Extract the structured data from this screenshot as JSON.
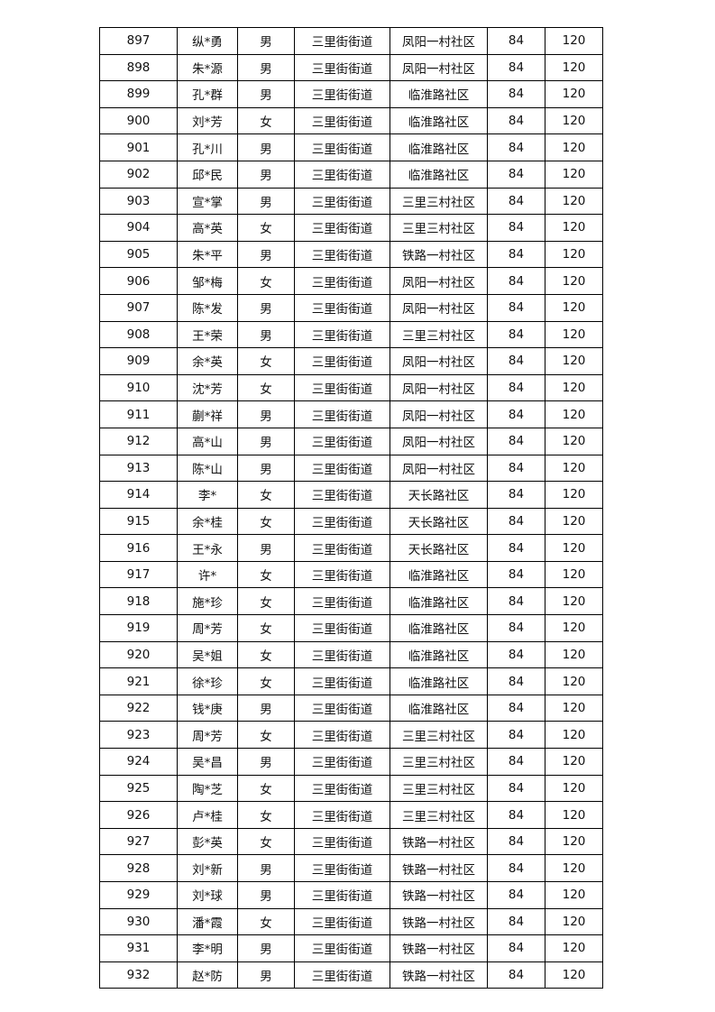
{
  "table": {
    "rows": [
      [
        "897",
        "纵*勇",
        "男",
        "三里街街道",
        "凤阳一村社区",
        "84",
        "120"
      ],
      [
        "898",
        "朱*源",
        "男",
        "三里街街道",
        "凤阳一村社区",
        "84",
        "120"
      ],
      [
        "899",
        "孔*群",
        "男",
        "三里街街道",
        "临淮路社区",
        "84",
        "120"
      ],
      [
        "900",
        "刘*芳",
        "女",
        "三里街街道",
        "临淮路社区",
        "84",
        "120"
      ],
      [
        "901",
        "孔*川",
        "男",
        "三里街街道",
        "临淮路社区",
        "84",
        "120"
      ],
      [
        "902",
        "邱*民",
        "男",
        "三里街街道",
        "临淮路社区",
        "84",
        "120"
      ],
      [
        "903",
        "宣*掌",
        "男",
        "三里街街道",
        "三里三村社区",
        "84",
        "120"
      ],
      [
        "904",
        "高*英",
        "女",
        "三里街街道",
        "三里三村社区",
        "84",
        "120"
      ],
      [
        "905",
        "朱*平",
        "男",
        "三里街街道",
        "铁路一村社区",
        "84",
        "120"
      ],
      [
        "906",
        "邹*梅",
        "女",
        "三里街街道",
        "凤阳一村社区",
        "84",
        "120"
      ],
      [
        "907",
        "陈*发",
        "男",
        "三里街街道",
        "凤阳一村社区",
        "84",
        "120"
      ],
      [
        "908",
        "王*荣",
        "男",
        "三里街街道",
        "三里三村社区",
        "84",
        "120"
      ],
      [
        "909",
        "余*英",
        "女",
        "三里街街道",
        "凤阳一村社区",
        "84",
        "120"
      ],
      [
        "910",
        "沈*芳",
        "女",
        "三里街街道",
        "凤阳一村社区",
        "84",
        "120"
      ],
      [
        "911",
        "蒯*祥",
        "男",
        "三里街街道",
        "凤阳一村社区",
        "84",
        "120"
      ],
      [
        "912",
        "高*山",
        "男",
        "三里街街道",
        "凤阳一村社区",
        "84",
        "120"
      ],
      [
        "913",
        "陈*山",
        "男",
        "三里街街道",
        "凤阳一村社区",
        "84",
        "120"
      ],
      [
        "914",
        "李*",
        "女",
        "三里街街道",
        "天长路社区",
        "84",
        "120"
      ],
      [
        "915",
        "余*桂",
        "女",
        "三里街街道",
        "天长路社区",
        "84",
        "120"
      ],
      [
        "916",
        "王*永",
        "男",
        "三里街街道",
        "天长路社区",
        "84",
        "120"
      ],
      [
        "917",
        "许*",
        "女",
        "三里街街道",
        "临淮路社区",
        "84",
        "120"
      ],
      [
        "918",
        "施*珍",
        "女",
        "三里街街道",
        "临淮路社区",
        "84",
        "120"
      ],
      [
        "919",
        "周*芳",
        "女",
        "三里街街道",
        "临淮路社区",
        "84",
        "120"
      ],
      [
        "920",
        "吴*姐",
        "女",
        "三里街街道",
        "临淮路社区",
        "84",
        "120"
      ],
      [
        "921",
        "徐*珍",
        "女",
        "三里街街道",
        "临淮路社区",
        "84",
        "120"
      ],
      [
        "922",
        "钱*庚",
        "男",
        "三里街街道",
        "临淮路社区",
        "84",
        "120"
      ],
      [
        "923",
        "周*芳",
        "女",
        "三里街街道",
        "三里三村社区",
        "84",
        "120"
      ],
      [
        "924",
        "吴*昌",
        "男",
        "三里街街道",
        "三里三村社区",
        "84",
        "120"
      ],
      [
        "925",
        "陶*芝",
        "女",
        "三里街街道",
        "三里三村社区",
        "84",
        "120"
      ],
      [
        "926",
        "卢*桂",
        "女",
        "三里街街道",
        "三里三村社区",
        "84",
        "120"
      ],
      [
        "927",
        "彭*英",
        "女",
        "三里街街道",
        "铁路一村社区",
        "84",
        "120"
      ],
      [
        "928",
        "刘*新",
        "男",
        "三里街街道",
        "铁路一村社区",
        "84",
        "120"
      ],
      [
        "929",
        "刘*球",
        "男",
        "三里街街道",
        "铁路一村社区",
        "84",
        "120"
      ],
      [
        "930",
        "潘*霞",
        "女",
        "三里街街道",
        "铁路一村社区",
        "84",
        "120"
      ],
      [
        "931",
        "李*明",
        "男",
        "三里街街道",
        "铁路一村社区",
        "84",
        "120"
      ],
      [
        "932",
        "赵*防",
        "男",
        "三里街街道",
        "铁路一村社区",
        "84",
        "120"
      ]
    ]
  }
}
